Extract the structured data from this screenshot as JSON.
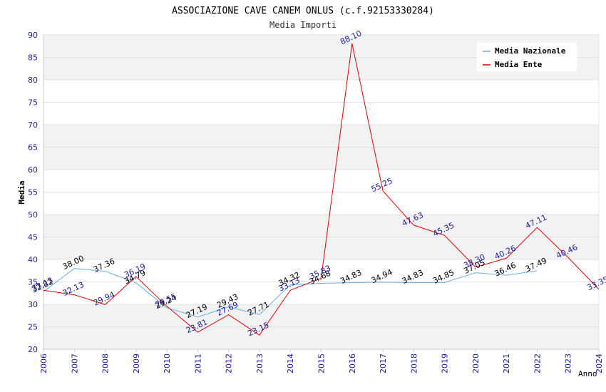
{
  "chart_data": {
    "type": "line",
    "title": "ASSOCIAZIONE CAVE CANEM ONLUS (c.f.92153330284)",
    "subtitle": "Media Importi",
    "xlabel": "Anno",
    "ylabel": "Media",
    "ylim": [
      20,
      90
    ],
    "yticks": [
      "20",
      "25",
      "30",
      "35",
      "40",
      "45",
      "50",
      "55",
      "60",
      "65",
      "70",
      "75",
      "80",
      "85",
      "90"
    ],
    "categories": [
      "2006",
      "2007",
      "2008",
      "2009",
      "2010",
      "2011",
      "2012",
      "2013",
      "2014",
      "2015",
      "2016",
      "2017",
      "2018",
      "2019",
      "2020",
      "2021",
      "2022",
      "2023",
      "2024"
    ],
    "series": [
      {
        "name": "Media Nazionale",
        "color": "#6aaee8",
        "label_color": "#000000",
        "values": [
          32.82,
          38.0,
          37.36,
          34.79,
          29.24,
          27.19,
          29.43,
          27.71,
          34.32,
          34.68,
          34.83,
          34.94,
          34.83,
          34.85,
          37.05,
          36.46,
          37.49,
          null,
          null
        ],
        "labels": [
          "32.82",
          "38.00",
          "37.36",
          "34.79",
          "29.24",
          "27.19",
          "29.43",
          "27.71",
          "34.32",
          "34.68",
          "34.83",
          "34.94",
          "34.83",
          "34.85",
          "37.05",
          "36.46",
          "37.49",
          "",
          ""
        ]
      },
      {
        "name": "Media Ente",
        "color": "#e00000",
        "label_color": "#1a1aa0",
        "values": [
          33.13,
          32.13,
          29.94,
          36.19,
          29.55,
          23.81,
          27.69,
          23.15,
          33.13,
          35.83,
          88.1,
          55.25,
          47.63,
          45.35,
          38.3,
          40.26,
          47.11,
          40.46,
          33.35
        ],
        "labels": [
          "33.13",
          "32.13",
          "29.94",
          "36.19",
          "29.55",
          "23.81",
          "27.69",
          "23.15",
          "33.13",
          "35.83",
          "88.10",
          "55.25",
          "47.63",
          "45.35",
          "38.30",
          "40.26",
          "47.11",
          "40.46",
          "33.35"
        ]
      }
    ],
    "legend_placement": "top-right",
    "grid": true
  }
}
